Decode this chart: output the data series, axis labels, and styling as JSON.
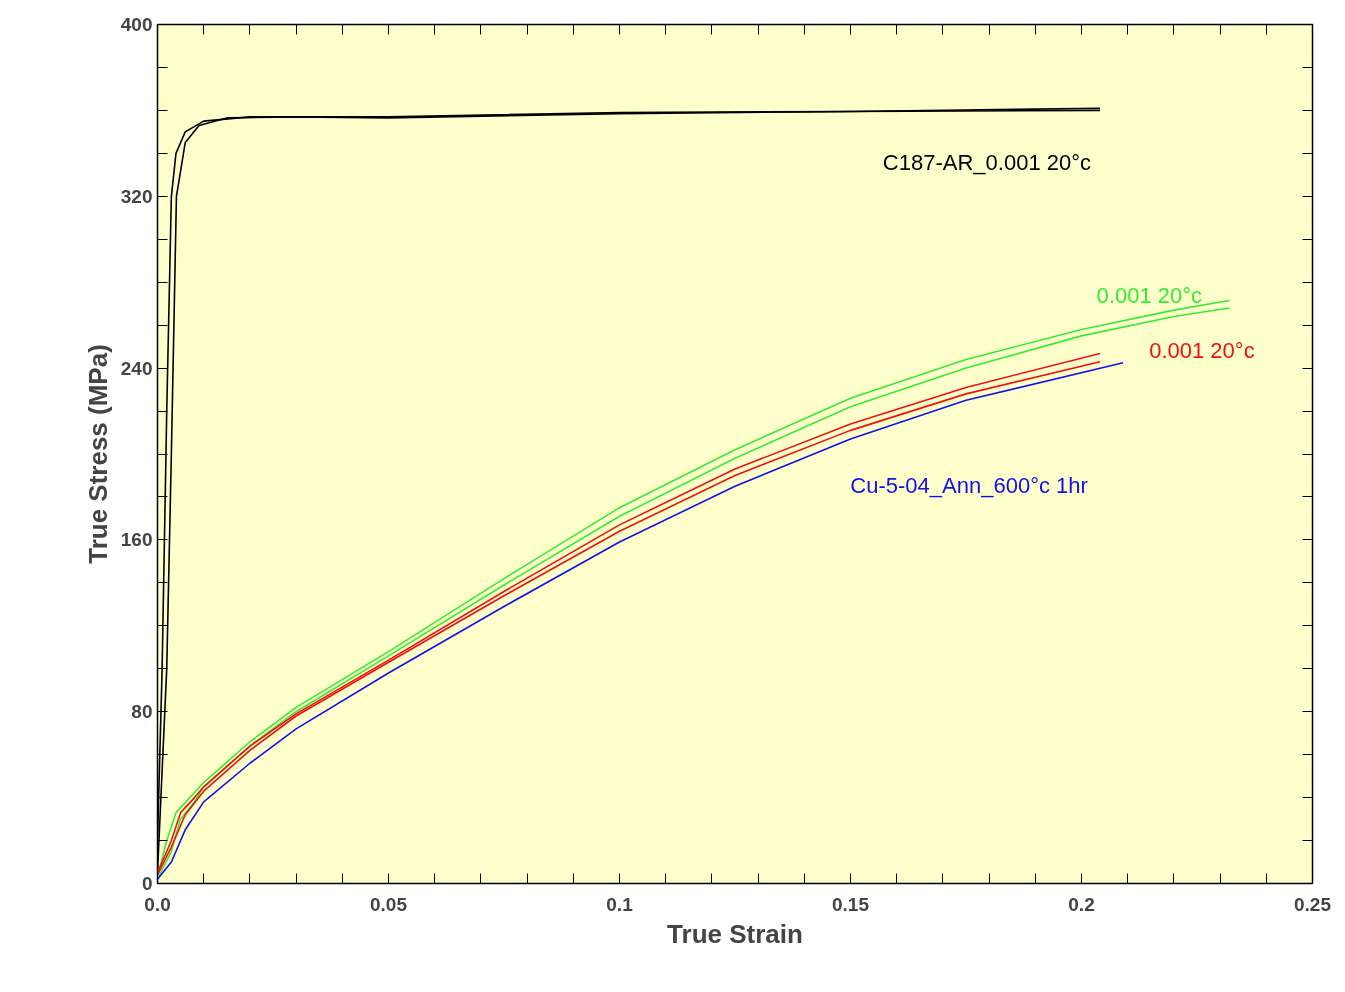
{
  "chart_data": {
    "type": "line",
    "xlabel": "True Strain",
    "ylabel": "True Stress (MPa)",
    "xlim": [
      0,
      0.25
    ],
    "ylim": [
      0,
      400
    ],
    "xticks": [
      {
        "value": 0,
        "label": "0.0"
      },
      {
        "value": 0.01,
        "label": null
      },
      {
        "value": 0.02,
        "label": null
      },
      {
        "value": 0.03,
        "label": null
      },
      {
        "value": 0.04,
        "label": null
      },
      0.05,
      {
        "value": 0.06,
        "label": null
      },
      {
        "value": 0.07,
        "label": null
      },
      {
        "value": 0.08,
        "label": null
      },
      {
        "value": 0.09,
        "label": null
      },
      0.1,
      {
        "value": 0.11,
        "label": null
      },
      {
        "value": 0.12,
        "label": null
      },
      {
        "value": 0.13,
        "label": null
      },
      {
        "value": 0.14,
        "label": null
      },
      0.15,
      {
        "value": 0.16,
        "label": null
      },
      {
        "value": 0.17,
        "label": null
      },
      {
        "value": 0.18,
        "label": null
      },
      {
        "value": 0.19,
        "label": null
      },
      0.2,
      {
        "value": 0.21,
        "label": null
      },
      {
        "value": 0.22,
        "label": null
      },
      {
        "value": 0.23,
        "label": null
      },
      {
        "value": 0.24,
        "label": null
      },
      0.25
    ],
    "yticks": [
      0,
      {
        "value": 20,
        "label": null
      },
      {
        "value": 40,
        "label": null
      },
      {
        "value": 60,
        "label": null
      },
      80,
      {
        "value": 100,
        "label": null
      },
      {
        "value": 120,
        "label": null
      },
      {
        "value": 140,
        "label": null
      },
      160,
      {
        "value": 180,
        "label": null
      },
      {
        "value": 200,
        "label": null
      },
      {
        "value": 220,
        "label": null
      },
      240,
      {
        "value": 260,
        "label": null
      },
      {
        "value": 280,
        "label": null
      },
      {
        "value": 300,
        "label": null
      },
      320,
      {
        "value": 340,
        "label": null
      },
      {
        "value": 360,
        "label": null
      },
      {
        "value": 380,
        "label": null
      },
      400
    ],
    "grid": false,
    "marker": "none",
    "line_style": "solid",
    "series": [
      {
        "name": "C187-AR_0.001  20°c",
        "color": "#000000",
        "x": [
          0,
          0.001,
          0.002,
          0.003,
          0.004,
          0.006,
          0.01,
          0.02,
          0.05,
          0.1,
          0.15,
          0.204
        ],
        "values": [
          20,
          100,
          220,
          320,
          340,
          350,
          355,
          357,
          357,
          359,
          359.5,
          361
        ]
      },
      {
        "color": "#000000",
        "x": [
          0,
          0.002,
          0.003,
          0.0041,
          0.006,
          0.009,
          0.015,
          0.03,
          0.05,
          0.1,
          0.15,
          0.204
        ],
        "values": [
          5,
          100,
          200,
          320,
          345,
          353,
          356.5,
          357,
          356.5,
          358.5,
          359.5,
          360
        ]
      },
      {
        "name": "0.001  20°c",
        "color": "#33ee33",
        "x": [
          0,
          0.002,
          0.004,
          0.007,
          0.01,
          0.02,
          0.03,
          0.05,
          0.075,
          0.1,
          0.125,
          0.15,
          0.175,
          0.2,
          0.22,
          0.232
        ],
        "values": [
          3,
          20,
          33,
          40,
          47,
          66,
          82,
          108,
          142,
          175,
          202,
          226,
          244,
          258,
          267,
          271.5
        ]
      },
      {
        "color": "#33ee33",
        "x": [
          0,
          0.003,
          0.005,
          0.008,
          0.01,
          0.02,
          0.03,
          0.05,
          0.075,
          0.1,
          0.125,
          0.15,
          0.175,
          0.2,
          0.22,
          0.232
        ],
        "values": [
          2,
          15,
          30,
          38,
          45,
          64,
          80,
          106,
          139,
          171,
          198,
          222,
          240,
          255,
          264,
          268
        ]
      },
      {
        "name": "0.001  20°c",
        "color": "#ee1111",
        "x": [
          0,
          0.003,
          0.005,
          0.008,
          0.01,
          0.02,
          0.03,
          0.05,
          0.075,
          0.1,
          0.125,
          0.15,
          0.175,
          0.204
        ],
        "values": [
          5,
          20,
          33,
          40,
          45,
          64,
          79,
          104,
          136,
          167,
          193,
          214,
          231,
          246.8
        ]
      },
      {
        "color": "#ee1111",
        "x": [
          0,
          0.003,
          0.006,
          0.01,
          0.02,
          0.03,
          0.05,
          0.075,
          0.1,
          0.125,
          0.15,
          0.175,
          0.204
        ],
        "values": [
          4,
          17,
          32,
          43,
          62,
          78,
          103,
          134,
          164,
          190,
          211,
          228,
          243
        ]
      },
      {
        "name": "Cu-5-04_Ann_600°c 1hr",
        "color": "#1111ee",
        "x": [
          0,
          0.003,
          0.006,
          0.01,
          0.02,
          0.03,
          0.05,
          0.075,
          0.1,
          0.125,
          0.15,
          0.175,
          0.209
        ],
        "values": [
          2,
          10,
          25,
          38,
          56,
          72,
          98,
          129,
          159,
          185,
          207,
          225,
          242.5
        ]
      }
    ]
  }
}
